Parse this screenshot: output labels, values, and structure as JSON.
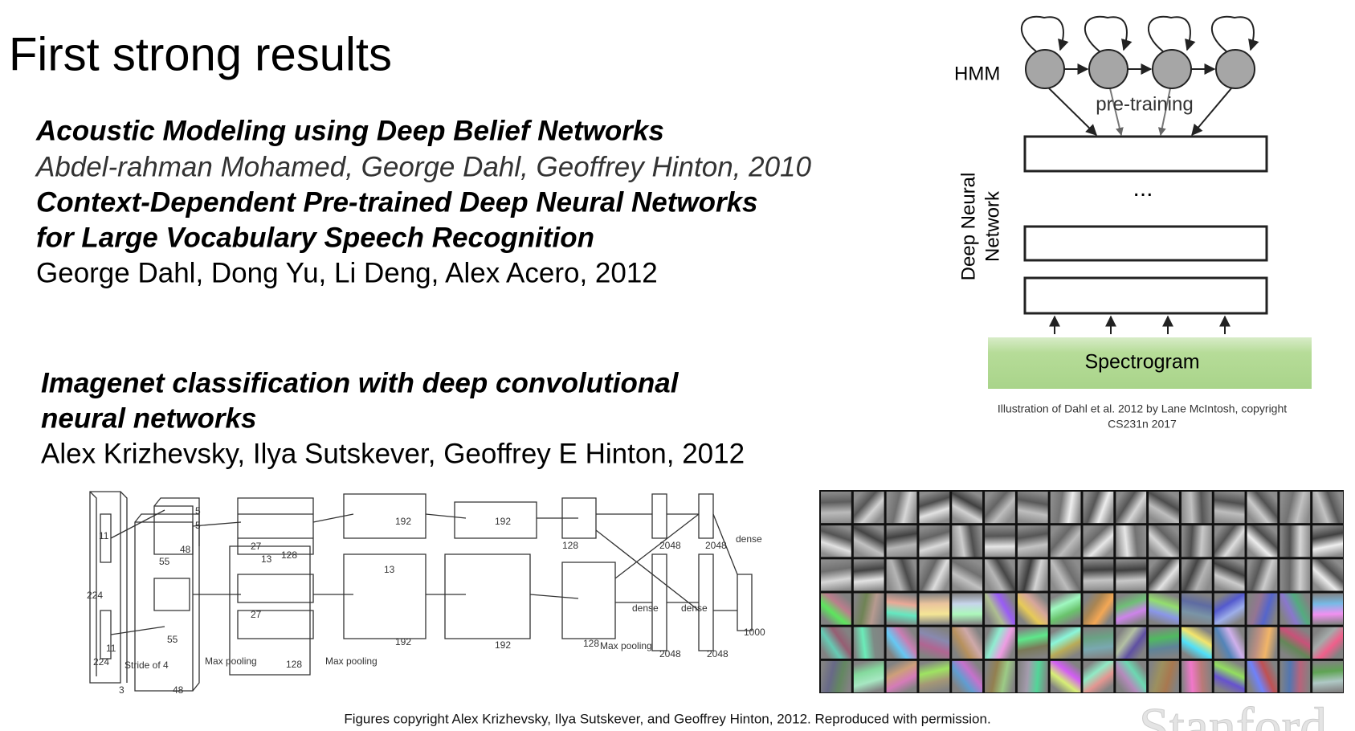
{
  "header": {
    "title": "First strong results"
  },
  "papers": [
    {
      "title_lines": [
        "Acoustic Modeling using Deep Belief Networks"
      ],
      "authors": "Abdel-rahman Mohamed, George Dahl, Geoffrey Hinton, 2010"
    },
    {
      "title_lines": [
        "Context-Dependent Pre-trained Deep Neural Networks",
        "for Large Vocabulary Speech Recognition"
      ],
      "authors": "George Dahl, Dong Yu, Li Deng, Alex Acero, 2012"
    },
    {
      "title_lines": [
        "Imagenet classification with deep convolutional",
        "neural networks"
      ],
      "authors": "Alex Krizhevsky, Ilya Sutskever, Geoffrey E Hinton, 2012"
    }
  ],
  "speech_diagram": {
    "hmm": "HMM",
    "pretraining": "pre-training",
    "network": [
      "Deep Neural",
      "Network"
    ],
    "ellipsis": "...",
    "input": "Spectrogram",
    "caption": [
      "Illustration of Dahl et al. 2012 by Lane McIntosh, copyright",
      "CS231n 2017"
    ]
  },
  "alexnet": {
    "labels": [
      "224",
      "224",
      "3",
      "11",
      "11",
      "Stride of 4",
      "55",
      "55",
      "48",
      "48",
      "5",
      "5",
      "27",
      "27",
      "128",
      "128",
      "Max pooling",
      "Max pooling",
      "13",
      "13",
      "192",
      "192",
      "192",
      "192",
      "128",
      "128",
      "Max pooling",
      "2048",
      "2048",
      "2048",
      "2048",
      "dense",
      "dense",
      "dense",
      "1000"
    ]
  },
  "footer": {
    "caption": "Figures copyright Alex Krizhevsky, Ilya Sutskever, and Geoffrey Hinton, 2012. Reproduced with permission.",
    "watermark": "Stanford"
  }
}
